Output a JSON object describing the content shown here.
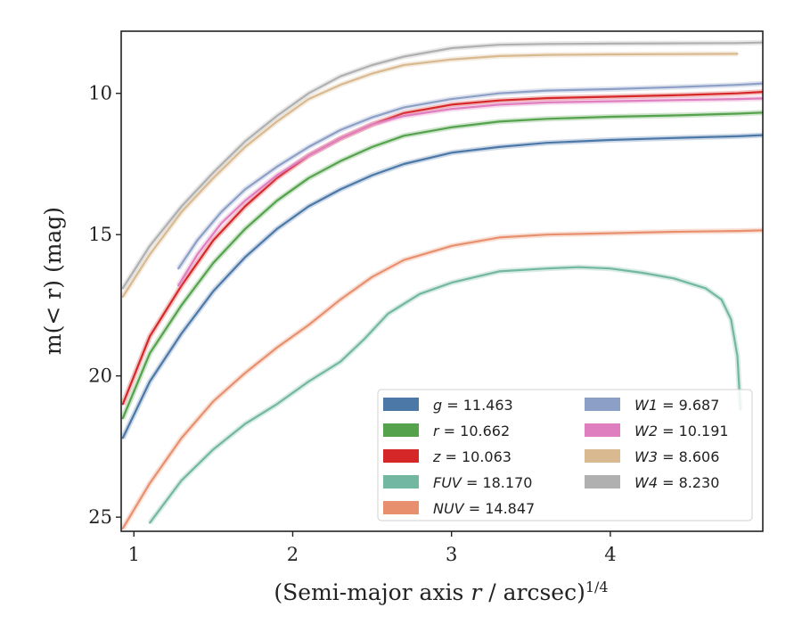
{
  "chart_data": {
    "type": "line",
    "xlabel_main": "(Semi-major axis ",
    "xlabel_var": "r",
    "xlabel_rest": " / arcsec)",
    "xlabel_sup": "1/4",
    "ylabel_main": "m(< r) (mag)",
    "xlim": [
      0.92,
      4.96
    ],
    "ylim": [
      25.5,
      7.8
    ],
    "y_inverted": true,
    "xticks": [
      1,
      2,
      3,
      4
    ],
    "yticks": [
      10,
      15,
      20,
      25
    ],
    "legend_position": "lower-right",
    "legend_columns": 2,
    "series": [
      {
        "name": "g",
        "total": "11.463",
        "color": "#4c78a8",
        "x": [
          0.93,
          1.1,
          1.3,
          1.5,
          1.7,
          1.9,
          2.1,
          2.3,
          2.5,
          2.7,
          3.0,
          3.3,
          3.6,
          4.0,
          4.4,
          4.8,
          4.96
        ],
        "y": [
          22.2,
          20.2,
          18.5,
          17.0,
          15.8,
          14.8,
          14.0,
          13.4,
          12.9,
          12.5,
          12.1,
          11.9,
          11.75,
          11.65,
          11.58,
          11.52,
          11.48
        ]
      },
      {
        "name": "r",
        "total": "10.662",
        "color": "#54a24b",
        "x": [
          0.93,
          1.1,
          1.3,
          1.5,
          1.7,
          1.9,
          2.1,
          2.3,
          2.5,
          2.7,
          3.0,
          3.3,
          3.6,
          4.0,
          4.4,
          4.8,
          4.96
        ],
        "y": [
          21.5,
          19.2,
          17.5,
          16.0,
          14.8,
          13.8,
          13.0,
          12.4,
          11.9,
          11.5,
          11.2,
          11.0,
          10.9,
          10.83,
          10.78,
          10.72,
          10.68
        ]
      },
      {
        "name": "z",
        "total": "10.063",
        "color": "#d62728",
        "x": [
          0.93,
          1.1,
          1.3,
          1.5,
          1.7,
          1.9,
          2.1,
          2.3,
          2.5,
          2.7,
          3.0,
          3.3,
          3.6,
          4.0,
          4.4,
          4.8,
          4.96
        ],
        "y": [
          21.0,
          18.6,
          16.8,
          15.2,
          14.0,
          13.0,
          12.2,
          11.6,
          11.1,
          10.7,
          10.4,
          10.25,
          10.17,
          10.12,
          10.07,
          10.0,
          9.95
        ]
      },
      {
        "name": "FUV",
        "total": "18.170",
        "color": "#72b7a1",
        "x": [
          1.1,
          1.3,
          1.5,
          1.7,
          1.9,
          2.1,
          2.3,
          2.45,
          2.6,
          2.8,
          3.0,
          3.3,
          3.6,
          3.8,
          4.0,
          4.2,
          4.4,
          4.6,
          4.7,
          4.76,
          4.8,
          4.82
        ],
        "y": [
          25.2,
          23.7,
          22.6,
          21.7,
          21.0,
          20.2,
          19.5,
          18.7,
          17.8,
          17.1,
          16.7,
          16.3,
          16.2,
          16.15,
          16.2,
          16.35,
          16.55,
          16.9,
          17.3,
          18.0,
          19.3,
          21.2
        ]
      },
      {
        "name": "NUV",
        "total": "14.847",
        "color": "#e8906e",
        "x": [
          0.93,
          1.1,
          1.3,
          1.5,
          1.7,
          1.9,
          2.1,
          2.3,
          2.5,
          2.7,
          3.0,
          3.3,
          3.6,
          4.0,
          4.4,
          4.8,
          4.96
        ],
        "y": [
          25.4,
          23.8,
          22.2,
          20.9,
          19.9,
          19.0,
          18.2,
          17.3,
          16.5,
          15.9,
          15.4,
          15.1,
          15.0,
          14.95,
          14.9,
          14.87,
          14.85
        ]
      },
      {
        "name": "W1",
        "total": "9.687",
        "color": "#8c9fc6",
        "x": [
          1.28,
          1.4,
          1.55,
          1.7,
          1.9,
          2.1,
          2.3,
          2.5,
          2.7,
          3.0,
          3.3,
          3.6,
          4.0,
          4.4,
          4.8,
          4.96
        ],
        "y": [
          16.2,
          15.2,
          14.2,
          13.4,
          12.6,
          11.9,
          11.3,
          10.85,
          10.5,
          10.2,
          10.0,
          9.9,
          9.85,
          9.78,
          9.7,
          9.65
        ]
      },
      {
        "name": "W2",
        "total": "10.191",
        "color": "#e07fbf",
        "x": [
          1.28,
          1.4,
          1.55,
          1.7,
          1.9,
          2.1,
          2.3,
          2.5,
          2.7,
          3.0,
          3.3,
          3.6,
          4.0,
          4.4,
          4.8,
          4.96
        ],
        "y": [
          16.8,
          15.7,
          14.6,
          13.8,
          12.9,
          12.2,
          11.6,
          11.1,
          10.8,
          10.55,
          10.4,
          10.32,
          10.28,
          10.24,
          10.2,
          10.18
        ]
      },
      {
        "name": "W3",
        "total": "8.606",
        "color": "#d9b98f",
        "x": [
          0.93,
          1.1,
          1.3,
          1.5,
          1.7,
          1.9,
          2.1,
          2.3,
          2.5,
          2.7,
          3.0,
          3.3,
          3.6,
          4.0,
          4.4,
          4.8
        ],
        "y": [
          17.2,
          15.7,
          14.2,
          13.0,
          11.9,
          11.0,
          10.2,
          9.7,
          9.3,
          9.0,
          8.8,
          8.68,
          8.64,
          8.62,
          8.61,
          8.6
        ]
      },
      {
        "name": "W4",
        "total": "8.230",
        "color": "#b0b0b0",
        "x": [
          0.93,
          1.1,
          1.3,
          1.5,
          1.7,
          1.9,
          2.1,
          2.3,
          2.5,
          2.7,
          3.0,
          3.3,
          3.6,
          4.0,
          4.4,
          4.8,
          4.96
        ],
        "y": [
          16.9,
          15.4,
          14.0,
          12.8,
          11.7,
          10.8,
          10.0,
          9.4,
          9.0,
          8.7,
          8.4,
          8.28,
          8.25,
          8.24,
          8.23,
          8.22,
          8.2
        ]
      }
    ]
  }
}
